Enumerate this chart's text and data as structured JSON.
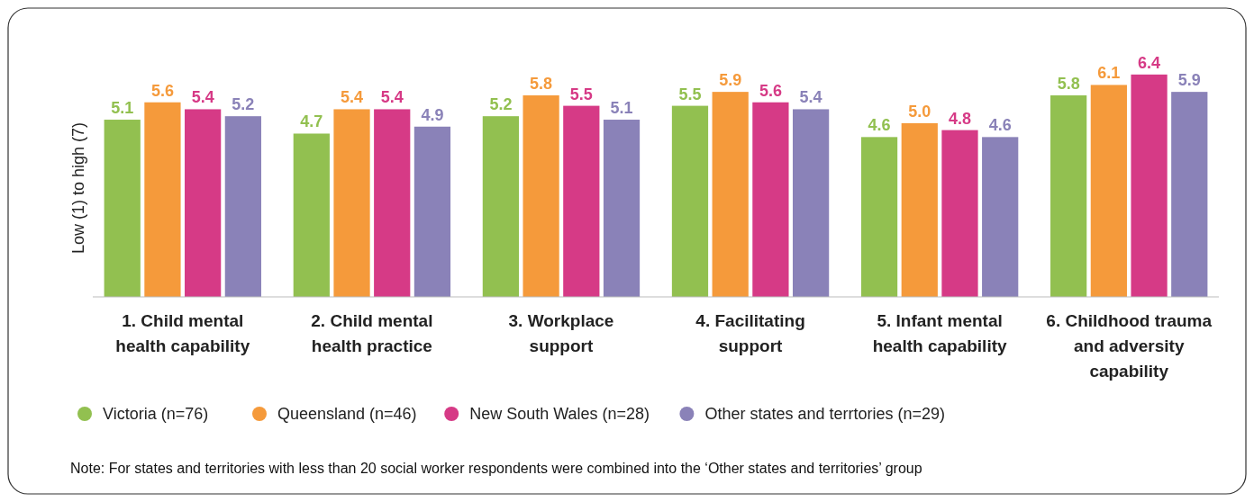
{
  "chart_data": {
    "type": "bar",
    "ylabel": "Low (1) to high (7)",
    "categories": [
      "1. Child mental health capability",
      "2. Child mental health practice",
      "3. Workplace support",
      "4. Facilitating support",
      "5. Infant mental health capability",
      "6. Childhood trauma and adversity capability"
    ],
    "series": [
      {
        "name": "Victoria (n=76)",
        "color": "#92c050",
        "values": [
          5.1,
          4.7,
          5.2,
          5.5,
          4.6,
          5.8
        ],
        "value_labels": [
          "5.1",
          "4.7",
          "5.2",
          "5.5",
          "4.6",
          "5.8"
        ]
      },
      {
        "name": "Queensland (n=46)",
        "color": "#f59a3b",
        "values": [
          5.6,
          5.4,
          5.8,
          5.9,
          5.0,
          6.1
        ],
        "value_labels": [
          "5.6",
          "5.4",
          "5.8",
          "5.9",
          "5.0",
          "6.1"
        ]
      },
      {
        "name": "New South Wales (n=28)",
        "color": "#d63a86",
        "values": [
          5.4,
          5.4,
          5.5,
          5.6,
          4.8,
          6.4
        ],
        "value_labels": [
          "5.4",
          "5.4",
          "5.5",
          "5.6",
          "4.8",
          "6.4"
        ]
      },
      {
        "name": "Other states and terrtories (n=29)",
        "color": "#8a82b8",
        "values": [
          5.2,
          4.9,
          5.1,
          5.4,
          4.6,
          5.9
        ],
        "value_labels": [
          "5.2",
          "4.9",
          "5.1",
          "5.4",
          "4.6",
          "5.9"
        ]
      }
    ],
    "grid": false,
    "legend": "bottom",
    "annotations": [
      "Note: For states and territories with less than 20 social worker respondents were combined into the ‘Other states and territories’ group"
    ]
  }
}
